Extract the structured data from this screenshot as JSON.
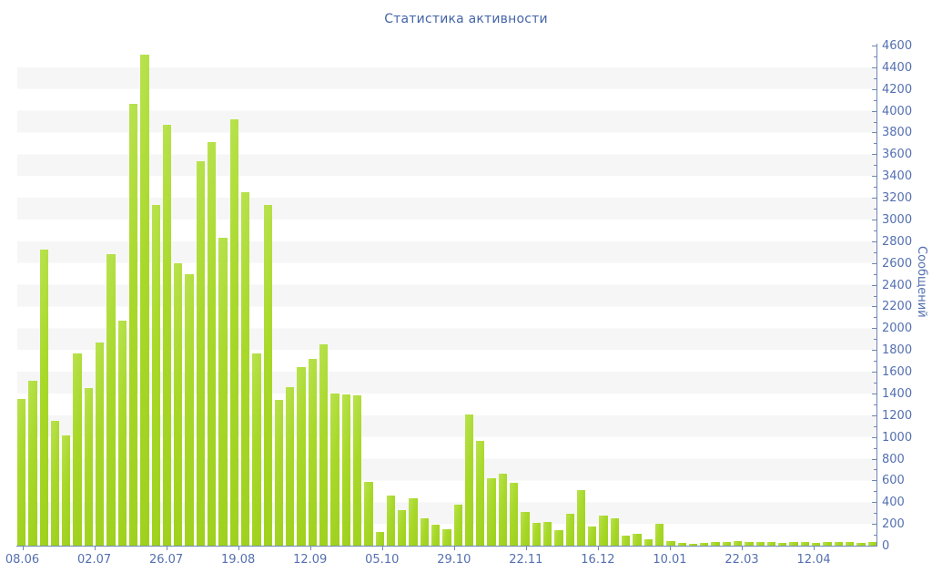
{
  "title": "Статистика активности",
  "colors": {
    "title_text": "#4464a8",
    "tick_text": "#5470b0",
    "axis_line": "#6d87b5",
    "stripe": "#f6f6f7",
    "bar_light": "#b9e24f",
    "bar_main": "#a8d829",
    "bar_dark": "#9ed01d",
    "background": "#ffffff"
  },
  "y_axis": {
    "label": "Сообщений",
    "min": 0,
    "max": 4600,
    "major_step": 200,
    "minor_step": 100,
    "tick_labels": [
      0,
      200,
      400,
      600,
      800,
      1000,
      1200,
      1400,
      1600,
      1800,
      2000,
      2200,
      2400,
      2600,
      2800,
      3000,
      3200,
      3400,
      3600,
      3800,
      4000,
      4200,
      4400,
      4600
    ]
  },
  "x_axis": {
    "labels": [
      "08.06",
      "02.07",
      "26.07",
      "19.08",
      "12.09",
      "05.10",
      "29.10",
      "22.11",
      "16.12",
      "10.01",
      "22.03",
      "12.04"
    ]
  },
  "chart_data": {
    "type": "bar",
    "title": "Статистика активности",
    "ylabel": "Сообщений",
    "ylim": [
      0,
      4600
    ],
    "grid": "alternating horizontal bands every 200 units",
    "legend": "none",
    "x_tick_labels": [
      "08.06",
      "02.07",
      "26.07",
      "19.08",
      "12.09",
      "05.10",
      "29.10",
      "22.11",
      "16.12",
      "10.01",
      "22.03",
      "12.04"
    ],
    "values": [
      1350,
      1520,
      2720,
      1150,
      1010,
      1770,
      1450,
      1870,
      2680,
      2070,
      4060,
      4520,
      3130,
      3870,
      2600,
      2500,
      3540,
      3710,
      2830,
      3920,
      3250,
      1770,
      3130,
      1340,
      1460,
      1640,
      1720,
      1850,
      1400,
      1390,
      1380,
      590,
      125,
      460,
      330,
      440,
      250,
      190,
      150,
      380,
      1210,
      960,
      620,
      660,
      580,
      310,
      210,
      220,
      140,
      290,
      515,
      180,
      275,
      250,
      95,
      110,
      60,
      205,
      40,
      25,
      20,
      25,
      30,
      30,
      45,
      30,
      30,
      30,
      25,
      30,
      30,
      25,
      30,
      35,
      30,
      25,
      30
    ]
  }
}
